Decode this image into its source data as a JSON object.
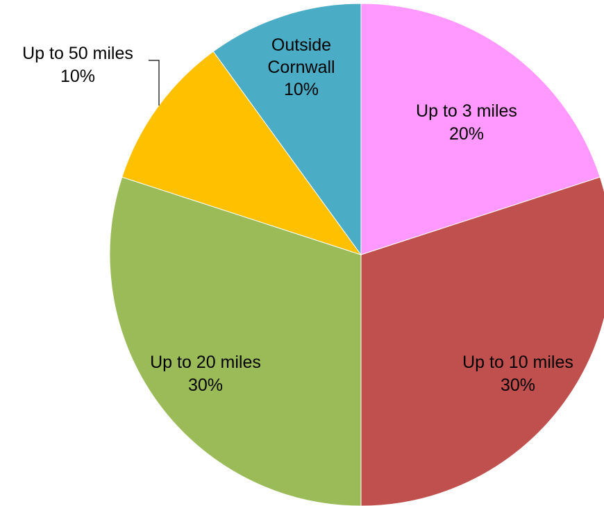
{
  "chart_data": {
    "type": "pie",
    "title": "",
    "start_angle_deg": 0,
    "direction": "clockwise",
    "slices": [
      {
        "label_lines": [
          "Up to 3 miles"
        ],
        "percent_label": "20%",
        "value": 20,
        "color": "#FF99FF"
      },
      {
        "label_lines": [
          "Up to 10 miles"
        ],
        "percent_label": "30%",
        "value": 30,
        "color": "#C0504D"
      },
      {
        "label_lines": [
          "Up to 20 miles"
        ],
        "percent_label": "30%",
        "value": 30,
        "color": "#9BBB59"
      },
      {
        "label_lines": [
          "Up to 50 miles"
        ],
        "percent_label": "10%",
        "value": 10,
        "color": "#FFC000"
      },
      {
        "label_lines": [
          "Outside",
          "Cornwall"
        ],
        "percent_label": "10%",
        "value": 10,
        "color": "#4BACC6"
      }
    ]
  }
}
